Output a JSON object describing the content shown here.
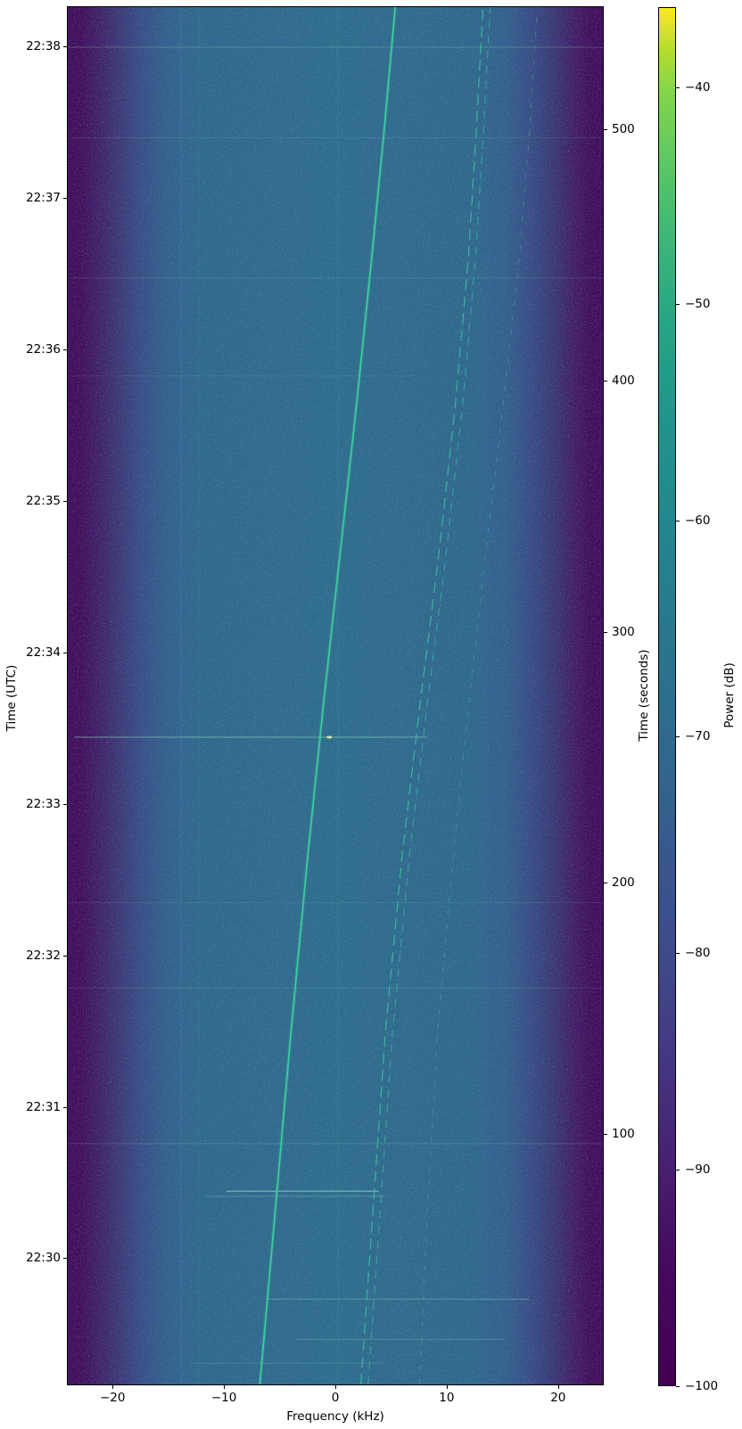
{
  "figure": {
    "background": "#ffffff",
    "style": "matplotlib-default"
  },
  "chart_data": {
    "type": "heatmap",
    "subtype": "spectrogram-waterfall",
    "title": "",
    "xlabel": "Frequency (kHz)",
    "ylabel_left": "Time (UTC)",
    "ylabel_right": "Time (seconds)",
    "colorbar_label": "Power (dB)",
    "colormap": "viridis",
    "x_range_khz": [
      -24.1,
      24.1
    ],
    "y_range_seconds": [
      0,
      549
    ],
    "power_range_db": [
      -100,
      -36.3
    ],
    "background_power_db": -80,
    "edge_power_db": -100,
    "grid": false,
    "x_ticks": [
      {
        "label": "−20",
        "khz": -20
      },
      {
        "label": "−10",
        "khz": -10
      },
      {
        "label": "0",
        "khz": 0
      },
      {
        "label": "10",
        "khz": 10
      },
      {
        "label": "20",
        "khz": 20
      }
    ],
    "utc_ticks": [
      {
        "label": "22:38",
        "seconds": 533
      },
      {
        "label": "22:37",
        "seconds": 472.7
      },
      {
        "label": "22:36",
        "seconds": 412.4
      },
      {
        "label": "22:35",
        "seconds": 352.1
      },
      {
        "label": "22:34",
        "seconds": 291.8
      },
      {
        "label": "22:33",
        "seconds": 231.5
      },
      {
        "label": "22:32",
        "seconds": 171.2
      },
      {
        "label": "22:31",
        "seconds": 110.9
      },
      {
        "label": "22:30",
        "seconds": 50.6
      }
    ],
    "seconds_ticks": [
      {
        "label": "500",
        "seconds": 500
      },
      {
        "label": "400",
        "seconds": 400
      },
      {
        "label": "300",
        "seconds": 300
      },
      {
        "label": "200",
        "seconds": 200
      },
      {
        "label": "100",
        "seconds": 100
      }
    ],
    "colorbar_ticks": [
      {
        "label": "−40",
        "db": -40
      },
      {
        "label": "−50",
        "db": -50
      },
      {
        "label": "−60",
        "db": -60
      },
      {
        "label": "−70",
        "db": -70
      },
      {
        "label": "−80",
        "db": -80
      },
      {
        "label": "−90",
        "db": -90
      },
      {
        "label": "−100",
        "db": -100
      }
    ],
    "signals": [
      {
        "name": "main-doppler-carrier",
        "color": "#3fd0a0",
        "width": 1.7,
        "opacity": 0.95,
        "dash": "none",
        "glow": true,
        "points": [
          [
            0,
            -6.8
          ],
          [
            70,
            -5.4
          ],
          [
            140,
            -4.0
          ],
          [
            210,
            -2.5
          ],
          [
            270,
            -1.1
          ],
          [
            330,
            0.4
          ],
          [
            390,
            1.9
          ],
          [
            450,
            3.3
          ],
          [
            500,
            4.4
          ],
          [
            549,
            5.4
          ]
        ]
      },
      {
        "name": "doppler-sideband-a",
        "color": "#3cc9a0",
        "width": 1.2,
        "opacity": 0.8,
        "dash": "12 7",
        "glow": false,
        "points": [
          [
            0,
            2.3
          ],
          [
            70,
            3.4
          ],
          [
            140,
            4.5
          ],
          [
            210,
            6.0
          ],
          [
            270,
            7.6
          ],
          [
            330,
            9.3
          ],
          [
            390,
            10.8
          ],
          [
            450,
            12.0
          ],
          [
            500,
            12.7
          ],
          [
            549,
            13.3
          ]
        ]
      },
      {
        "name": "doppler-sideband-b",
        "color": "#3cc9a0",
        "width": 1.1,
        "opacity": 0.6,
        "dash": "9 8",
        "glow": false,
        "points": [
          [
            0,
            2.95
          ],
          [
            70,
            4.05
          ],
          [
            140,
            5.15
          ],
          [
            210,
            6.65
          ],
          [
            270,
            8.25
          ],
          [
            330,
            9.95
          ],
          [
            390,
            11.45
          ],
          [
            450,
            12.65
          ],
          [
            500,
            13.35
          ],
          [
            549,
            13.95
          ]
        ]
      },
      {
        "name": "doppler-sideband-c",
        "color": "#49c9a8",
        "width": 1.0,
        "opacity": 0.4,
        "dash": "6 10",
        "glow": false,
        "points": [
          [
            0,
            7.6
          ],
          [
            70,
            8.3
          ],
          [
            140,
            9.2
          ],
          [
            210,
            10.6
          ],
          [
            270,
            12.0
          ],
          [
            330,
            13.5
          ],
          [
            390,
            15.1
          ],
          [
            450,
            16.6
          ],
          [
            500,
            17.5
          ],
          [
            549,
            18.2
          ]
        ]
      }
    ],
    "streaks": [
      {
        "seconds": 533,
        "f_start": -24.1,
        "f_end": 24.1,
        "opacity": 0.28,
        "width": 1
      },
      {
        "seconds": 497,
        "f_start": -24.1,
        "f_end": 24.1,
        "opacity": 0.14,
        "width": 1
      },
      {
        "seconds": 441,
        "f_start": -24.1,
        "f_end": 24.1,
        "opacity": 0.16,
        "width": 1
      },
      {
        "seconds": 402,
        "f_start": -24.1,
        "f_end": 7.0,
        "opacity": 0.12,
        "width": 1
      },
      {
        "seconds": 258,
        "f_start": -23.5,
        "f_end": 8.3,
        "opacity": 0.42,
        "width": 1.3
      },
      {
        "seconds": 192,
        "f_start": -24.1,
        "f_end": 24.1,
        "opacity": 0.13,
        "width": 1
      },
      {
        "seconds": 158,
        "f_start": -24.1,
        "f_end": 24.1,
        "opacity": 0.16,
        "width": 1
      },
      {
        "seconds": 96,
        "f_start": -24.1,
        "f_end": 24.1,
        "opacity": 0.2,
        "width": 1
      },
      {
        "seconds": 77,
        "f_start": -9.8,
        "f_end": 3.9,
        "opacity": 0.55,
        "width": 1.5
      },
      {
        "seconds": 75,
        "f_start": -11.6,
        "f_end": 4.5,
        "opacity": 0.32,
        "width": 1
      },
      {
        "seconds": 34,
        "f_start": -6.2,
        "f_end": 17.5,
        "opacity": 0.34,
        "width": 1.2
      },
      {
        "seconds": 18,
        "f_start": -3.6,
        "f_end": 15.2,
        "opacity": 0.28,
        "width": 1
      },
      {
        "seconds": 8.5,
        "f_start": -13.0,
        "f_end": 4.2,
        "opacity": 0.2,
        "width": 1
      }
    ],
    "birdies": [
      {
        "khz": -13.9,
        "opacity": 0.1
      },
      {
        "khz": -12.3,
        "opacity": 0.06
      },
      {
        "khz": 0.25,
        "opacity": 0.08
      }
    ],
    "hotspot": {
      "seconds": 258,
      "khz": -0.55,
      "color": "#e9f2a2"
    },
    "colors": {
      "field": "#2d708e",
      "edge": "#440154",
      "signal": "#3fd0a0",
      "streak": "#93dfc0"
    },
    "edge_profile": [
      [
        0.0,
        "#440154"
      ],
      [
        0.025,
        "#440557"
      ],
      [
        0.05,
        "#431461"
      ],
      [
        0.08,
        "#3f2a6d"
      ],
      [
        0.11,
        "#3b3d7a"
      ],
      [
        0.145,
        "#375187"
      ],
      [
        0.18,
        "#33608d"
      ],
      [
        0.23,
        "#2f6a8e"
      ],
      [
        0.5,
        "#2d708e"
      ],
      [
        0.77,
        "#2f6a8e"
      ],
      [
        0.82,
        "#33608d"
      ],
      [
        0.855,
        "#375187"
      ],
      [
        0.89,
        "#3b3d7a"
      ],
      [
        0.92,
        "#3f2a6d"
      ],
      [
        0.95,
        "#431461"
      ],
      [
        0.975,
        "#440557"
      ],
      [
        1.0,
        "#440154"
      ]
    ],
    "viridis_stops": [
      [
        0.0,
        "#440154"
      ],
      [
        0.08,
        "#46085c"
      ],
      [
        0.15,
        "#471d6c"
      ],
      [
        0.23,
        "#453581"
      ],
      [
        0.3,
        "#3f4889"
      ],
      [
        0.38,
        "#38578c"
      ],
      [
        0.46,
        "#30688e"
      ],
      [
        0.54,
        "#2a768e"
      ],
      [
        0.62,
        "#23858e"
      ],
      [
        0.7,
        "#1f958b"
      ],
      [
        0.77,
        "#24a585"
      ],
      [
        0.83,
        "#3bb678"
      ],
      [
        0.89,
        "#5cc863"
      ],
      [
        0.94,
        "#86d549"
      ],
      [
        0.97,
        "#b5de2b"
      ],
      [
        1.0,
        "#fde725"
      ]
    ]
  }
}
